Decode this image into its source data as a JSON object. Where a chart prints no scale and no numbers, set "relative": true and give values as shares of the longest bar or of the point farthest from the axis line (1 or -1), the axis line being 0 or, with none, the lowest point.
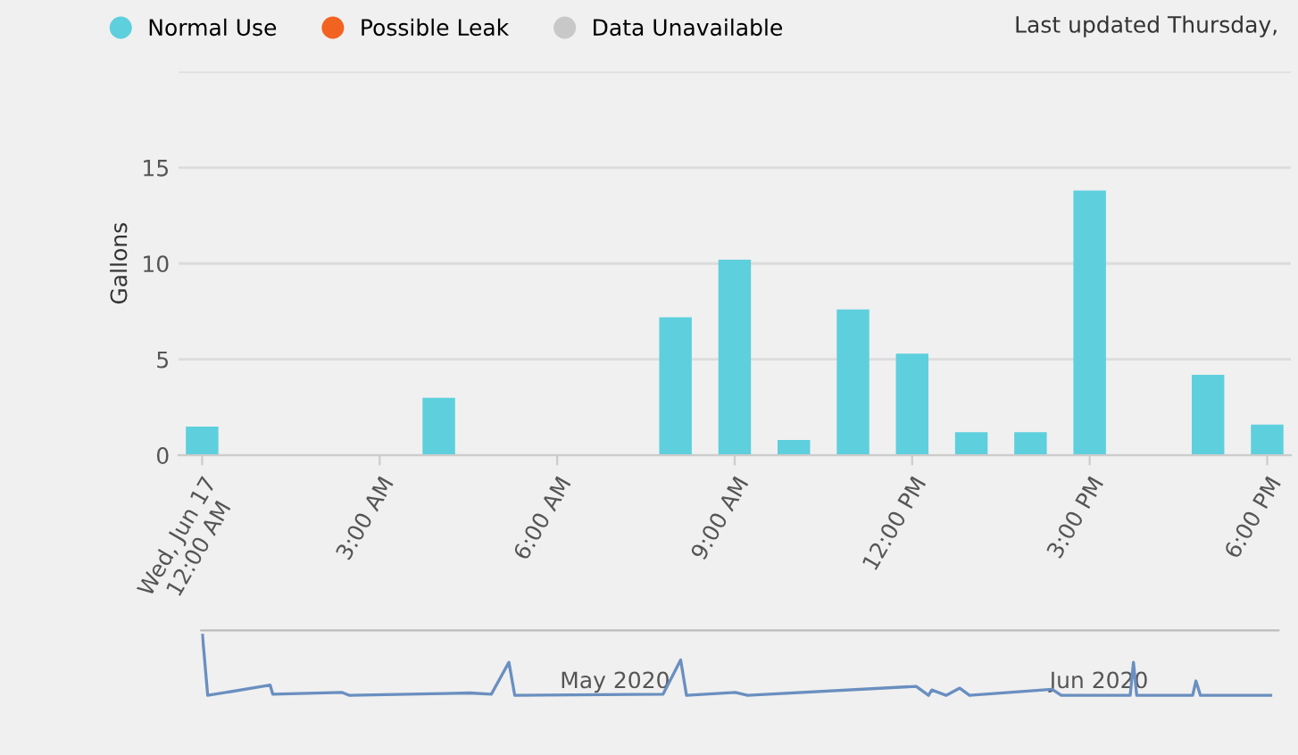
{
  "chart_data": [
    {
      "type": "bar",
      "ylabel": "Gallons",
      "x": [
        0,
        4,
        8,
        9,
        10,
        11,
        12,
        13,
        14,
        15,
        17,
        18
      ],
      "series": [
        {
          "name": "Normal Use",
          "color": "#5ecfdd",
          "values": [
            1.5,
            3.0,
            7.2,
            10.2,
            0.8,
            7.6,
            5.3,
            1.2,
            1.2,
            13.8,
            4.2,
            1.6
          ]
        },
        {
          "name": "Possible Leak",
          "color": "#f26322",
          "values": [
            null,
            null,
            null,
            null,
            null,
            null,
            null,
            null,
            null,
            null,
            null,
            null
          ]
        },
        {
          "name": "Data Unavailable",
          "color": "#c8c8c8",
          "values": [
            null,
            null,
            null,
            null,
            null,
            null,
            null,
            null,
            null,
            null,
            null,
            null
          ]
        }
      ],
      "xlim": [
        -0.4,
        18.4
      ],
      "xticks": [
        {
          "value": 0,
          "label": "Wed, Jun 17\n12:00 AM"
        },
        {
          "value": 3,
          "label": "3:00 AM"
        },
        {
          "value": 6,
          "label": "6:00 AM"
        },
        {
          "value": 9,
          "label": "9:00 AM"
        },
        {
          "value": 12,
          "label": "12:00 PM"
        },
        {
          "value": 15,
          "label": "3:00 PM"
        },
        {
          "value": 18,
          "label": "6:00 PM"
        }
      ],
      "ylim": [
        0,
        20
      ],
      "yticks": [
        0,
        5,
        10,
        15,
        {
          "value": 20,
          "label": null
        }
      ],
      "grid": "y",
      "legend": "top left",
      "annotations": [
        "Last updated Thursday,"
      ]
    },
    {
      "type": "line",
      "relative": true,
      "tick_labels": "x",
      "x": [
        "2020-04-04T14:00",
        "2020-04-04T22:00",
        "2020-04-08T22:00",
        "2020-04-09T02:00",
        "2020-04-13T12:00",
        "2020-04-14T00:00",
        "2020-04-21T17:00",
        "2020-04-23T02:00",
        "2020-04-24T05:00",
        "2020-04-24T14:00",
        "2020-05-04T02:00",
        "2020-05-05T05:00",
        "2020-05-05T14:00",
        "2020-05-08T17:00",
        "2020-05-09T12:00",
        "2020-05-20T07:00",
        "2020-05-21T02:00",
        "2020-05-21T07:00",
        "2020-05-22T05:00",
        "2020-05-23T02:00",
        "2020-05-23T17:00",
        "2020-05-29T00:00",
        "2020-05-29T14:00",
        "2020-06-03T00:00",
        "2020-06-03T05:00",
        "2020-06-03T10:00",
        "2020-06-07T00:00",
        "2020-06-07T05:00",
        "2020-06-07T12:00",
        "2020-06-12T00:00"
      ],
      "series": [
        {
          "color": "#6a8fc0",
          "values": [
            1.0,
            0.0,
            0.17,
            0.02,
            0.05,
            0.0,
            0.04,
            0.02,
            0.55,
            0.0,
            0.02,
            0.59,
            0.0,
            0.05,
            0.0,
            0.15,
            0.0,
            0.09,
            0.0,
            0.12,
            0.0,
            0.1,
            0.0,
            0.0,
            0.55,
            0.0,
            0.0,
            0.24,
            0.0,
            0.0
          ]
        }
      ],
      "xlim": [
        "2020-04-04T12:00",
        "2020-06-12T12:00"
      ],
      "xticks": [
        {
          "value": "2020-05-01",
          "label": "May 2020"
        },
        {
          "value": "2020-06-01",
          "label": "Jun 2020"
        }
      ]
    }
  ]
}
